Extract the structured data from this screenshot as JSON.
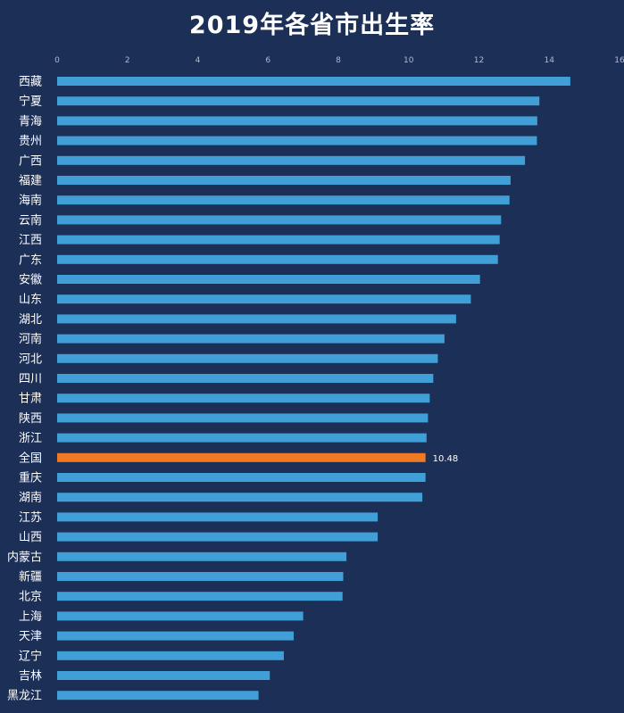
{
  "chart_data": {
    "type": "bar",
    "orientation": "horizontal",
    "title": "2019年各省市出生率",
    "xlim": [
      0,
      16
    ],
    "xticks": [
      "0",
      "2",
      "4",
      "6",
      "8",
      "10",
      "12",
      "14",
      "16"
    ],
    "grid": false,
    "colors": {
      "bar": "#3f9fd6",
      "highlight": "#f07a24",
      "background": "#1c2f57"
    },
    "categories": [
      "西藏",
      "宁夏",
      "青海",
      "贵州",
      "广西",
      "福建",
      "海南",
      "云南",
      "江西",
      "广东",
      "安徽",
      "山东",
      "湖北",
      "河南",
      "河北",
      "四川",
      "甘肃",
      "陕西",
      "浙江",
      "全国",
      "重庆",
      "湖南",
      "江苏",
      "山西",
      "内蒙古",
      "新疆",
      "北京",
      "上海",
      "天津",
      "辽宁",
      "吉林",
      "黑龙江"
    ],
    "values": [
      14.6,
      13.72,
      13.66,
      13.65,
      13.31,
      12.9,
      12.87,
      12.63,
      12.59,
      12.54,
      12.03,
      11.77,
      11.35,
      11.02,
      10.83,
      10.7,
      10.6,
      10.55,
      10.51,
      10.48,
      10.48,
      10.39,
      9.12,
      9.12,
      8.23,
      8.14,
      8.12,
      7.0,
      6.73,
      6.45,
      6.05,
      5.73
    ],
    "highlight": {
      "category": "全国",
      "label": "10.48"
    }
  }
}
